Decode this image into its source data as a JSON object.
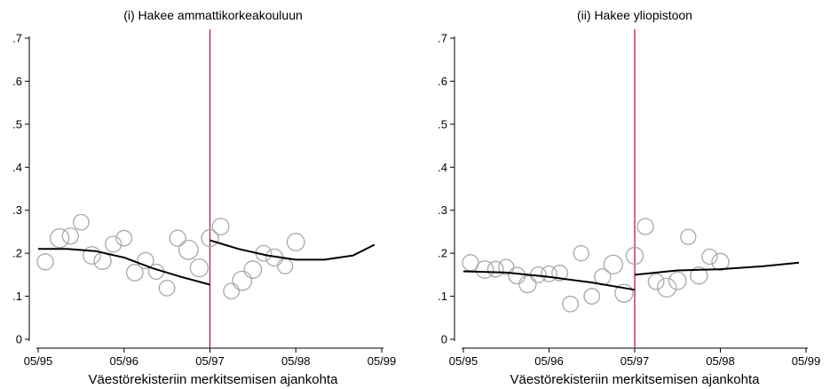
{
  "chart_data": [
    {
      "type": "scatter",
      "title": "(i) Hakee ammattikorkeakouluun",
      "xlabel": "Väestörekisteriin merkitsemisen ajankohta",
      "ylabel": "",
      "x_ticks": [
        "05/95",
        "05/96",
        "05/97",
        "05/98",
        "05/99"
      ],
      "y_ticks": [
        "0",
        ".1",
        ".2",
        ".3",
        ".4",
        ".5",
        ".6",
        ".7"
      ],
      "xlim": [
        0,
        48
      ],
      "ylim": [
        0,
        0.7
      ],
      "cutoff_x": 24,
      "cutoff_color": "#b01e4a",
      "marker_color": "#a8a8a8",
      "line_color": "#000000",
      "grid": false,
      "points": [
        {
          "x": 1,
          "y": 0.18,
          "size": 0.6
        },
        {
          "x": 3,
          "y": 0.235,
          "size": 0.9
        },
        {
          "x": 4.5,
          "y": 0.24,
          "size": 0.6
        },
        {
          "x": 6,
          "y": 0.272,
          "size": 0.55
        },
        {
          "x": 7.5,
          "y": 0.195,
          "size": 0.75
        },
        {
          "x": 9,
          "y": 0.182,
          "size": 0.7
        },
        {
          "x": 10.5,
          "y": 0.221,
          "size": 0.6
        },
        {
          "x": 12,
          "y": 0.235,
          "size": 0.55
        },
        {
          "x": 13.5,
          "y": 0.155,
          "size": 0.65
        },
        {
          "x": 15,
          "y": 0.183,
          "size": 0.6
        },
        {
          "x": 16.5,
          "y": 0.157,
          "size": 0.5
        },
        {
          "x": 18,
          "y": 0.119,
          "size": 0.55
        },
        {
          "x": 19.5,
          "y": 0.235,
          "size": 0.6
        },
        {
          "x": 21,
          "y": 0.208,
          "size": 0.95
        },
        {
          "x": 22.5,
          "y": 0.166,
          "size": 0.8
        },
        {
          "x": 24,
          "y": 0.235,
          "size": 0.7
        },
        {
          "x": 25.5,
          "y": 0.262,
          "size": 0.65
        },
        {
          "x": 27,
          "y": 0.112,
          "size": 0.55
        },
        {
          "x": 28.5,
          "y": 0.136,
          "size": 0.95
        },
        {
          "x": 30,
          "y": 0.162,
          "size": 0.75
        },
        {
          "x": 31.5,
          "y": 0.2,
          "size": 0.55
        },
        {
          "x": 33,
          "y": 0.19,
          "size": 0.7
        },
        {
          "x": 34.5,
          "y": 0.17,
          "size": 0.5
        },
        {
          "x": 36,
          "y": 0.226,
          "size": 0.75
        }
      ],
      "fit_left": [
        {
          "x": 0,
          "y": 0.21
        },
        {
          "x": 4,
          "y": 0.21
        },
        {
          "x": 8,
          "y": 0.205
        },
        {
          "x": 12,
          "y": 0.19
        },
        {
          "x": 16,
          "y": 0.165
        },
        {
          "x": 20,
          "y": 0.145
        },
        {
          "x": 24,
          "y": 0.127
        }
      ],
      "fit_right": [
        {
          "x": 24,
          "y": 0.23
        },
        {
          "x": 28,
          "y": 0.21
        },
        {
          "x": 32,
          "y": 0.195
        },
        {
          "x": 36,
          "y": 0.185
        },
        {
          "x": 40,
          "y": 0.185
        },
        {
          "x": 44,
          "y": 0.195
        },
        {
          "x": 47,
          "y": 0.22
        }
      ]
    },
    {
      "type": "scatter",
      "title": "(ii) Hakee yliopistoon",
      "xlabel": "Väestörekisteriin merkitsemisen ajankohta",
      "ylabel": "",
      "x_ticks": [
        "05/95",
        "05/96",
        "05/97",
        "05/98",
        "05/99"
      ],
      "y_ticks": [
        "0",
        ".1",
        ".2",
        ".3",
        ".4",
        ".5",
        ".6",
        ".7"
      ],
      "xlim": [
        0,
        48
      ],
      "ylim": [
        0,
        0.7
      ],
      "cutoff_x": 24,
      "cutoff_color": "#b01e4a",
      "marker_color": "#a8a8a8",
      "line_color": "#000000",
      "grid": false,
      "points": [
        {
          "x": 1,
          "y": 0.178,
          "size": 0.6
        },
        {
          "x": 3,
          "y": 0.162,
          "size": 0.75
        },
        {
          "x": 4.5,
          "y": 0.163,
          "size": 0.55
        },
        {
          "x": 6,
          "y": 0.168,
          "size": 0.5
        },
        {
          "x": 7.5,
          "y": 0.148,
          "size": 0.65
        },
        {
          "x": 9,
          "y": 0.128,
          "size": 0.7
        },
        {
          "x": 10.5,
          "y": 0.15,
          "size": 0.55
        },
        {
          "x": 12,
          "y": 0.152,
          "size": 0.55
        },
        {
          "x": 13.5,
          "y": 0.154,
          "size": 0.55
        },
        {
          "x": 15,
          "y": 0.082,
          "size": 0.55
        },
        {
          "x": 16.5,
          "y": 0.2,
          "size": 0.5
        },
        {
          "x": 18,
          "y": 0.1,
          "size": 0.55
        },
        {
          "x": 19.5,
          "y": 0.145,
          "size": 0.6
        },
        {
          "x": 21,
          "y": 0.174,
          "size": 0.9
        },
        {
          "x": 22.5,
          "y": 0.107,
          "size": 0.8
        },
        {
          "x": 24,
          "y": 0.194,
          "size": 0.7
        },
        {
          "x": 25.5,
          "y": 0.262,
          "size": 0.6
        },
        {
          "x": 27,
          "y": 0.134,
          "size": 0.55
        },
        {
          "x": 28.5,
          "y": 0.12,
          "size": 0.9
        },
        {
          "x": 30,
          "y": 0.136,
          "size": 0.75
        },
        {
          "x": 31.5,
          "y": 0.238,
          "size": 0.5
        },
        {
          "x": 33,
          "y": 0.148,
          "size": 0.7
        },
        {
          "x": 34.5,
          "y": 0.192,
          "size": 0.5
        },
        {
          "x": 36,
          "y": 0.18,
          "size": 0.7
        }
      ],
      "fit_left": [
        {
          "x": 0,
          "y": 0.158
        },
        {
          "x": 6,
          "y": 0.155
        },
        {
          "x": 12,
          "y": 0.145
        },
        {
          "x": 18,
          "y": 0.132
        },
        {
          "x": 24,
          "y": 0.115
        }
      ],
      "fit_right": [
        {
          "x": 24,
          "y": 0.15
        },
        {
          "x": 30,
          "y": 0.16
        },
        {
          "x": 36,
          "y": 0.163
        },
        {
          "x": 42,
          "y": 0.17
        },
        {
          "x": 47,
          "y": 0.178
        }
      ]
    }
  ]
}
